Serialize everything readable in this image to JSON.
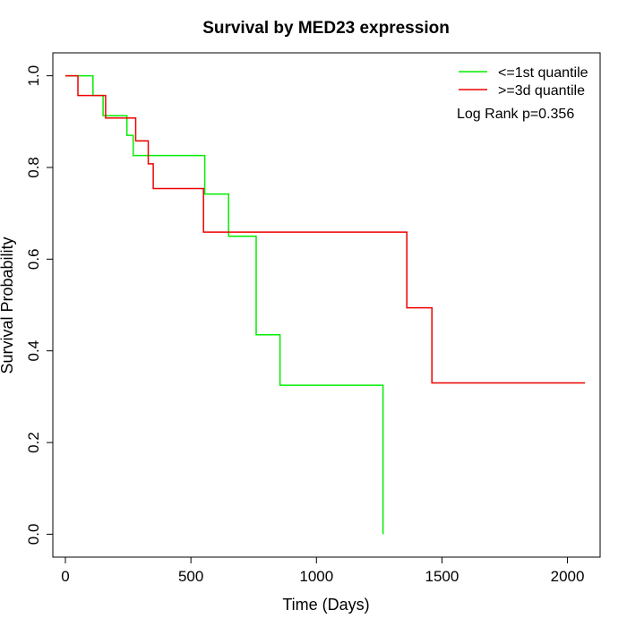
{
  "chart_data": {
    "type": "line",
    "title": "Survival by MED23 expression",
    "xlabel": "Time (Days)",
    "ylabel": "Survival Probability",
    "xlim": [
      -50,
      2130
    ],
    "ylim": [
      -0.05,
      1.05
    ],
    "xticks": [
      0,
      500,
      1000,
      1500,
      2000
    ],
    "yticks": [
      0.0,
      0.2,
      0.4,
      0.6,
      0.8,
      1.0
    ],
    "xtick_labels": [
      "0",
      "500",
      "1000",
      "1500",
      "2000"
    ],
    "ytick_labels": [
      "0.0",
      "0.2",
      "0.4",
      "0.6",
      "0.8",
      "1.0"
    ],
    "grid": false,
    "legend_position": "top-right",
    "annotation": "Log Rank p=0.356",
    "series": [
      {
        "name": "<=1st quantile",
        "color": "#00ee00",
        "step": true,
        "points": [
          [
            0,
            1.0
          ],
          [
            110,
            1.0
          ],
          [
            110,
            0.957
          ],
          [
            150,
            0.957
          ],
          [
            150,
            0.913
          ],
          [
            245,
            0.913
          ],
          [
            245,
            0.87
          ],
          [
            270,
            0.87
          ],
          [
            270,
            0.826
          ],
          [
            555,
            0.826
          ],
          [
            555,
            0.742
          ],
          [
            650,
            0.742
          ],
          [
            650,
            0.65
          ],
          [
            760,
            0.65
          ],
          [
            760,
            0.435
          ],
          [
            855,
            0.435
          ],
          [
            855,
            0.325
          ],
          [
            1265,
            0.325
          ],
          [
            1265,
            0.0
          ]
        ]
      },
      {
        "name": ">=3d quantile",
        "color": "#ee0000",
        "step": true,
        "points": [
          [
            0,
            1.0
          ],
          [
            50,
            1.0
          ],
          [
            50,
            0.957
          ],
          [
            160,
            0.957
          ],
          [
            160,
            0.908
          ],
          [
            280,
            0.908
          ],
          [
            280,
            0.858
          ],
          [
            330,
            0.858
          ],
          [
            330,
            0.808
          ],
          [
            350,
            0.808
          ],
          [
            350,
            0.754
          ],
          [
            550,
            0.754
          ],
          [
            550,
            0.659
          ],
          [
            1360,
            0.659
          ],
          [
            1360,
            0.494
          ],
          [
            1460,
            0.494
          ],
          [
            1460,
            0.33
          ],
          [
            2070,
            0.33
          ]
        ]
      }
    ]
  }
}
